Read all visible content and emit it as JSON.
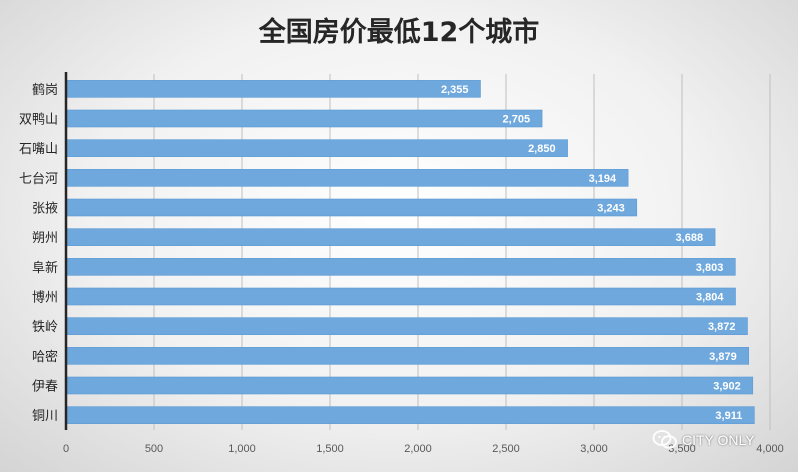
{
  "chart_data": {
    "type": "bar",
    "orientation": "horizontal",
    "title": "全国房价最低12个城市",
    "categories": [
      "鹤岗",
      "双鸭山",
      "石嘴山",
      "七台河",
      "张掖",
      "朔州",
      "阜新",
      "博州",
      "铁岭",
      "哈密",
      "伊春",
      "铜川"
    ],
    "values": [
      2355,
      2705,
      2850,
      3194,
      3243,
      3688,
      3803,
      3804,
      3872,
      3879,
      3902,
      3911
    ],
    "value_labels": [
      "2,355",
      "2,705",
      "2,850",
      "3,194",
      "3,243",
      "3,688",
      "3,803",
      "3,804",
      "3,872",
      "3,879",
      "3,902",
      "3,911"
    ],
    "xlim": [
      0,
      4000
    ],
    "x_ticks": [
      0,
      500,
      1000,
      1500,
      2000,
      2500,
      3000,
      3500,
      4000
    ],
    "x_tick_labels": [
      "0",
      "500",
      "1,000",
      "1,500",
      "2,000",
      "2,500",
      "3,000",
      "3,500",
      "4,000"
    ],
    "xlabel": "",
    "ylabel": "",
    "grid": true,
    "legend": "none",
    "bar_color": "#6fa8dc"
  },
  "watermark": {
    "icon": "wechat-icon",
    "text": "CITY ONLY"
  }
}
